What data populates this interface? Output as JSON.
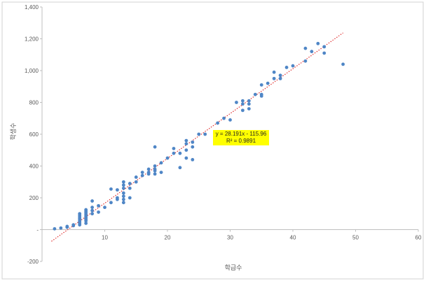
{
  "chart_data": {
    "type": "scatter",
    "xlabel": "학급수",
    "ylabel": "학생수",
    "xlim": [
      0,
      60
    ],
    "ylim": [
      -200,
      1400
    ],
    "x_ticks": [
      10,
      20,
      30,
      40,
      50,
      60
    ],
    "x_tick_labels": [
      "10",
      "20",
      "30",
      "40",
      "50",
      "60"
    ],
    "y_ticks": [
      -200,
      0,
      200,
      400,
      600,
      800,
      1000,
      1200,
      1400
    ],
    "y_tick_labels": [
      "-200",
      "-",
      "200",
      "400",
      "600",
      "800",
      "1,000",
      "1,200",
      "1,400"
    ],
    "grid": false,
    "legend": "none",
    "point_color": "#4f86c6",
    "trendline": {
      "type": "linear",
      "slope": 28.191,
      "intercept": -115.96,
      "x_range": [
        1.5,
        48
      ],
      "color": "#e03030",
      "style": "dotted",
      "equation_label": "y = 28.191x - 115.96",
      "r2_label": "R² = 0.9891",
      "label_background": "#ffff00"
    },
    "series": [
      {
        "points": [
          [
            2,
            5
          ],
          [
            3,
            10
          ],
          [
            4,
            15
          ],
          [
            4,
            20
          ],
          [
            5,
            25
          ],
          [
            5,
            30
          ],
          [
            6,
            30
          ],
          [
            6,
            40
          ],
          [
            6,
            50
          ],
          [
            6,
            60
          ],
          [
            6,
            70
          ],
          [
            6,
            80
          ],
          [
            6,
            90
          ],
          [
            6,
            100
          ],
          [
            7,
            40
          ],
          [
            7,
            55
          ],
          [
            7,
            65
          ],
          [
            7,
            75
          ],
          [
            7,
            85
          ],
          [
            7,
            95
          ],
          [
            7,
            105
          ],
          [
            7,
            115
          ],
          [
            7,
            125
          ],
          [
            8,
            100
          ],
          [
            8,
            120
          ],
          [
            8,
            140
          ],
          [
            8,
            180
          ],
          [
            9,
            110
          ],
          [
            9,
            150
          ],
          [
            10,
            140
          ],
          [
            11,
            170
          ],
          [
            11,
            255
          ],
          [
            12,
            190
          ],
          [
            12,
            200
          ],
          [
            12,
            250
          ],
          [
            13,
            170
          ],
          [
            13,
            190
          ],
          [
            13,
            210
          ],
          [
            13,
            230
          ],
          [
            13,
            260
          ],
          [
            13,
            280
          ],
          [
            13,
            300
          ],
          [
            14,
            200
          ],
          [
            14,
            260
          ],
          [
            14,
            290
          ],
          [
            15,
            300
          ],
          [
            15,
            330
          ],
          [
            16,
            340
          ],
          [
            16,
            360
          ],
          [
            17,
            350
          ],
          [
            17,
            360
          ],
          [
            17,
            380
          ],
          [
            18,
            350
          ],
          [
            18,
            370
          ],
          [
            18,
            380
          ],
          [
            18,
            400
          ],
          [
            18,
            520
          ],
          [
            19,
            360
          ],
          [
            19,
            420
          ],
          [
            20,
            450
          ],
          [
            21,
            480
          ],
          [
            21,
            510
          ],
          [
            22,
            390
          ],
          [
            22,
            480
          ],
          [
            23,
            450
          ],
          [
            23,
            500
          ],
          [
            23,
            540
          ],
          [
            23,
            560
          ],
          [
            24,
            440
          ],
          [
            24,
            520
          ],
          [
            24,
            550
          ],
          [
            25,
            600
          ],
          [
            26,
            600
          ],
          [
            28,
            670
          ],
          [
            29,
            700
          ],
          [
            30,
            690
          ],
          [
            31,
            800
          ],
          [
            32,
            750
          ],
          [
            32,
            790
          ],
          [
            32,
            810
          ],
          [
            33,
            760
          ],
          [
            33,
            790
          ],
          [
            33,
            810
          ],
          [
            34,
            850
          ],
          [
            35,
            840
          ],
          [
            35,
            850
          ],
          [
            35,
            910
          ],
          [
            36,
            920
          ],
          [
            37,
            950
          ],
          [
            37,
            990
          ],
          [
            38,
            950
          ],
          [
            38,
            970
          ],
          [
            39,
            1020
          ],
          [
            40,
            1030
          ],
          [
            42,
            1060
          ],
          [
            42,
            1140
          ],
          [
            43,
            1120
          ],
          [
            44,
            1170
          ],
          [
            45,
            1110
          ],
          [
            45,
            1150
          ],
          [
            48,
            1040
          ]
        ]
      }
    ]
  }
}
